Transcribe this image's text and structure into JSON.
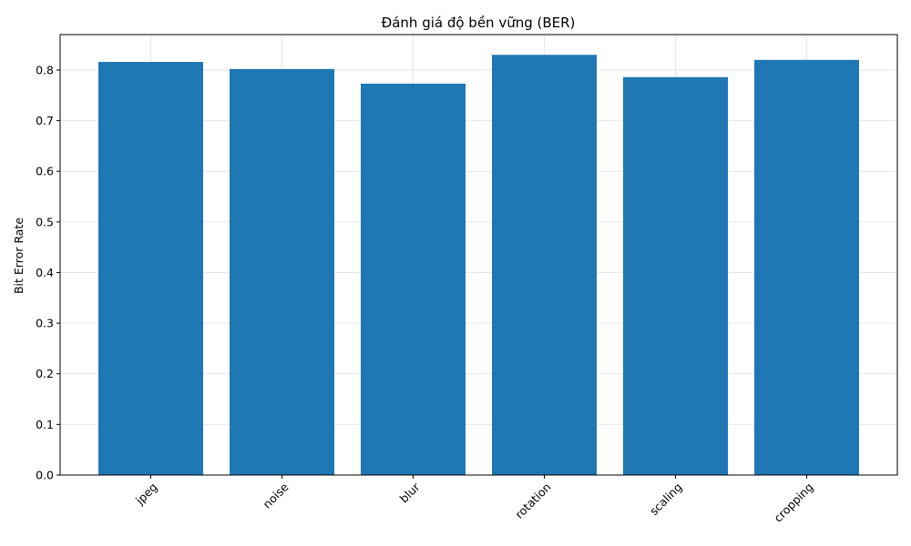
{
  "chart_data": {
    "type": "bar",
    "title": "Đánh giá độ bền vững (BER)",
    "xlabel": "",
    "ylabel": "Bit Error Rate",
    "categories": [
      "jpeg",
      "noise",
      "blur",
      "rotation",
      "scaling",
      "cropping"
    ],
    "values": [
      0.816,
      0.802,
      0.773,
      0.83,
      0.786,
      0.82
    ],
    "ylim": [
      0,
      0.87
    ],
    "yticks": [
      0.0,
      0.1,
      0.2,
      0.3,
      0.4,
      0.5,
      0.6,
      0.7,
      0.8
    ],
    "ytick_labels": [
      "0.0",
      "0.1",
      "0.2",
      "0.3",
      "0.4",
      "0.5",
      "0.6",
      "0.7",
      "0.8"
    ],
    "grid": true,
    "xtick_rotation": "45 degrees",
    "bar_color": "#1f77b4",
    "grid_color": "#e6e6e6"
  }
}
